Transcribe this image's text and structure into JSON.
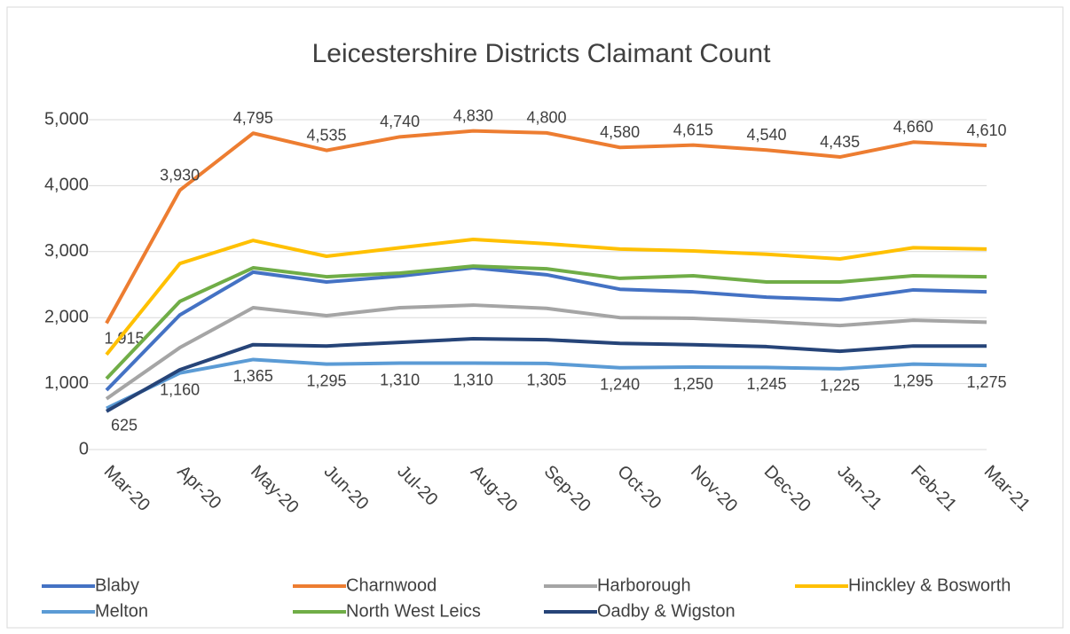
{
  "chart_data": {
    "type": "line",
    "title": "Leicestershire Districts Claimant Count",
    "categories": [
      "Mar-20",
      "Apr-20",
      "May-20",
      "Jun-20",
      "Jul-20",
      "Aug-20",
      "Sep-20",
      "Oct-20",
      "Nov-20",
      "Dec-20",
      "Jan-21",
      "Feb-21",
      "Mar-21"
    ],
    "series": [
      {
        "name": "Blaby",
        "color": "#4472c4",
        "values": [
          900,
          2040,
          2690,
          2540,
          2630,
          2755,
          2650,
          2430,
          2390,
          2310,
          2270,
          2420,
          2390
        ]
      },
      {
        "name": "Charnwood",
        "color": "#ed7d31",
        "values": [
          1915,
          3930,
          4795,
          4535,
          4740,
          4830,
          4800,
          4580,
          4615,
          4540,
          4435,
          4660,
          4610
        ],
        "value_labels": [
          "1,915",
          "3,930",
          "4,795",
          "4,535",
          "4,740",
          "4,830",
          "4,800",
          "4,580",
          "4,615",
          "4,540",
          "4,435",
          "4,660",
          "4,610"
        ]
      },
      {
        "name": "Harborough",
        "color": "#a5a5a5",
        "values": [
          770,
          1545,
          2150,
          2030,
          2150,
          2190,
          2140,
          2000,
          1990,
          1940,
          1880,
          1960,
          1930
        ]
      },
      {
        "name": "Hinckley & Bosworth",
        "color": "#ffc000",
        "values": [
          1440,
          2820,
          3170,
          2930,
          3060,
          3185,
          3120,
          3040,
          3010,
          2960,
          2890,
          3060,
          3040
        ]
      },
      {
        "name": "Melton",
        "color": "#5b9bd5",
        "values": [
          625,
          1160,
          1365,
          1295,
          1310,
          1310,
          1305,
          1240,
          1250,
          1245,
          1225,
          1295,
          1275
        ],
        "value_labels": [
          "625",
          "1,160",
          "1,365",
          "1,295",
          "1,310",
          "1,310",
          "1,305",
          "1,240",
          "1,250",
          "1,245",
          "1,225",
          "1,295",
          "1,275"
        ]
      },
      {
        "name": "North West Leics",
        "color": "#70ad47",
        "values": [
          1075,
          2245,
          2755,
          2620,
          2675,
          2780,
          2740,
          2595,
          2635,
          2540,
          2540,
          2635,
          2620
        ]
      },
      {
        "name": "Oadby & Wigston",
        "color": "#264478",
        "values": [
          580,
          1210,
          1590,
          1570,
          1625,
          1680,
          1665,
          1610,
          1590,
          1560,
          1490,
          1570,
          1570
        ]
      }
    ],
    "ylim": [
      0,
      5000
    ],
    "yticks": [
      0,
      {
        "value": 1000,
        "label": "1,000"
      },
      {
        "value": 2000,
        "label": "2,000"
      },
      {
        "value": 3000,
        "label": "3,000"
      },
      {
        "value": 4000,
        "label": "4,000"
      },
      {
        "value": 5000,
        "label": "5,000"
      }
    ],
    "grid": true,
    "legend": "bottom"
  }
}
